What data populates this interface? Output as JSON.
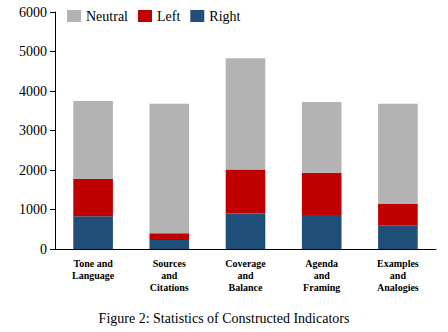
{
  "chart_data": {
    "type": "bar",
    "title": "Figure 2: Statistics of Constructed Indicators",
    "categories": [
      "Tone and\nLanguage",
      "Sources\nand\nCitations",
      "Coverage\nand\nBalance",
      "Agenda\nand\nFraming",
      "Examples\nand\nAnalogies"
    ],
    "series": [
      {
        "name": "Neutral",
        "color": "#b3b3b3",
        "values": [
          1980,
          3280,
          2820,
          1790,
          2540
        ]
      },
      {
        "name": "Left",
        "color": "#c00000",
        "values": [
          940,
          170,
          1110,
          1070,
          540
        ]
      },
      {
        "name": "Right",
        "color": "#1f4e79",
        "values": [
          830,
          230,
          900,
          860,
          600
        ]
      }
    ],
    "ylim": [
      0,
      6000
    ],
    "yticks": [
      0,
      1000,
      2000,
      3000,
      4000,
      5000,
      6000
    ],
    "stacked": true,
    "grid": false,
    "legend": "top-left"
  }
}
